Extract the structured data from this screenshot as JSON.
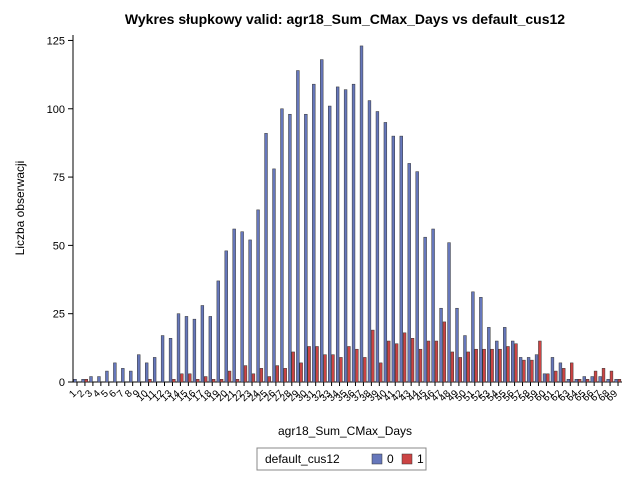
{
  "chart_data": {
    "type": "bar",
    "title": "Wykres słupkowy valid: agr18_Sum_CMax_Days vs default_cus12",
    "x_label": "agr18_Sum_CMax_Days",
    "y_label": "Liczba obserwacji",
    "legend_title": "default_cus12",
    "categories": [
      "1",
      "2",
      "3",
      "4",
      "5",
      "6",
      "7",
      "8",
      "9",
      "10",
      "11",
      "12",
      "13",
      "14",
      "15",
      "16",
      "17",
      "18",
      "19",
      "20",
      "21",
      "22",
      "23",
      "24",
      "25",
      "26",
      "27",
      "28",
      "29",
      "30",
      "31",
      "32",
      "33",
      "34",
      "35",
      "36",
      "37",
      "38",
      "39",
      "40",
      "41",
      "42",
      "43",
      "44",
      "45",
      "46",
      "47",
      "48",
      "49",
      "50",
      "51",
      "52",
      "53",
      "54",
      "55",
      "56",
      "57",
      "58",
      "59",
      "60",
      "61",
      "62",
      "63",
      "64",
      "65",
      "66",
      "67",
      "68",
      "69"
    ],
    "series": [
      {
        "name": "0",
        "color": "#6677bb",
        "values": [
          1,
          1,
          2,
          2,
          4,
          7,
          5,
          4,
          10,
          7,
          9,
          17,
          16,
          25,
          24,
          23,
          28,
          24,
          37,
          48,
          56,
          55,
          52,
          63,
          91,
          78,
          100,
          98,
          114,
          98,
          109,
          118,
          101,
          108,
          107,
          109,
          123,
          103,
          99,
          95,
          90,
          90,
          80,
          77,
          53,
          56,
          27,
          51,
          27,
          17,
          33,
          31,
          20,
          15,
          20,
          15,
          9,
          9,
          10,
          3,
          9,
          7,
          1,
          1,
          2,
          2,
          2,
          1,
          1
        ]
      },
      {
        "name": "1",
        "color": "#cc4444",
        "values": [
          0,
          1,
          0,
          0,
          0,
          0,
          0,
          0,
          0,
          1,
          0,
          0,
          1,
          3,
          3,
          1,
          2,
          1,
          1,
          4,
          1,
          6,
          3,
          5,
          2,
          6,
          5,
          11,
          7,
          13,
          13,
          10,
          10,
          9,
          13,
          12,
          9,
          19,
          7,
          15,
          14,
          18,
          16,
          12,
          15,
          15,
          22,
          11,
          9,
          11,
          12,
          12,
          12,
          12,
          13,
          14,
          8,
          8,
          15,
          3,
          4,
          5,
          7,
          1,
          1,
          4,
          5,
          4,
          1
        ]
      }
    ],
    "ylim": [
      0,
      127
    ],
    "yticks": [
      0,
      25,
      50,
      75,
      100,
      125
    ]
  }
}
